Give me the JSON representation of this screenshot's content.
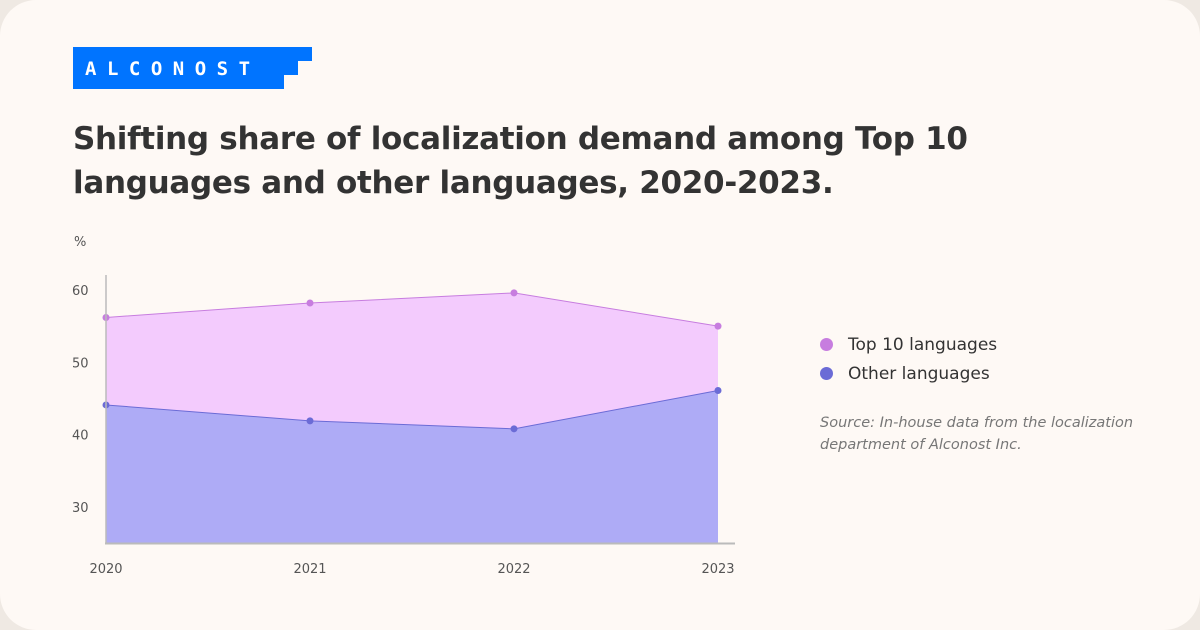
{
  "logo_text": "ALCONOST",
  "title": "Shifting share of localization demand among Top 10 languages and other languages, 2020-2023.",
  "source": "Source: In-house data from the localization department of Alconost Inc.",
  "colors": {
    "background": "#fef9f5",
    "brand": "#0074ff",
    "top10_line": "#c77ddf",
    "top10_fill": "#f3cbfd",
    "other_line": "#6b6bd6",
    "other_fill": "#aeabf6"
  },
  "chart_data": {
    "type": "area",
    "title": "",
    "xlabel": "",
    "ylabel": "%",
    "categories": [
      "2020",
      "2021",
      "2022",
      "2023"
    ],
    "yticks": [
      "30",
      "40",
      "50",
      "60"
    ],
    "ylim": [
      25,
      62
    ],
    "grid": false,
    "legend_position": "right",
    "series": [
      {
        "name": "Top 10 languages",
        "values": [
          56.2,
          58.2,
          59.6,
          55.0
        ]
      },
      {
        "name": "Other languages",
        "values": [
          44.1,
          41.9,
          40.8,
          46.1
        ]
      }
    ]
  }
}
